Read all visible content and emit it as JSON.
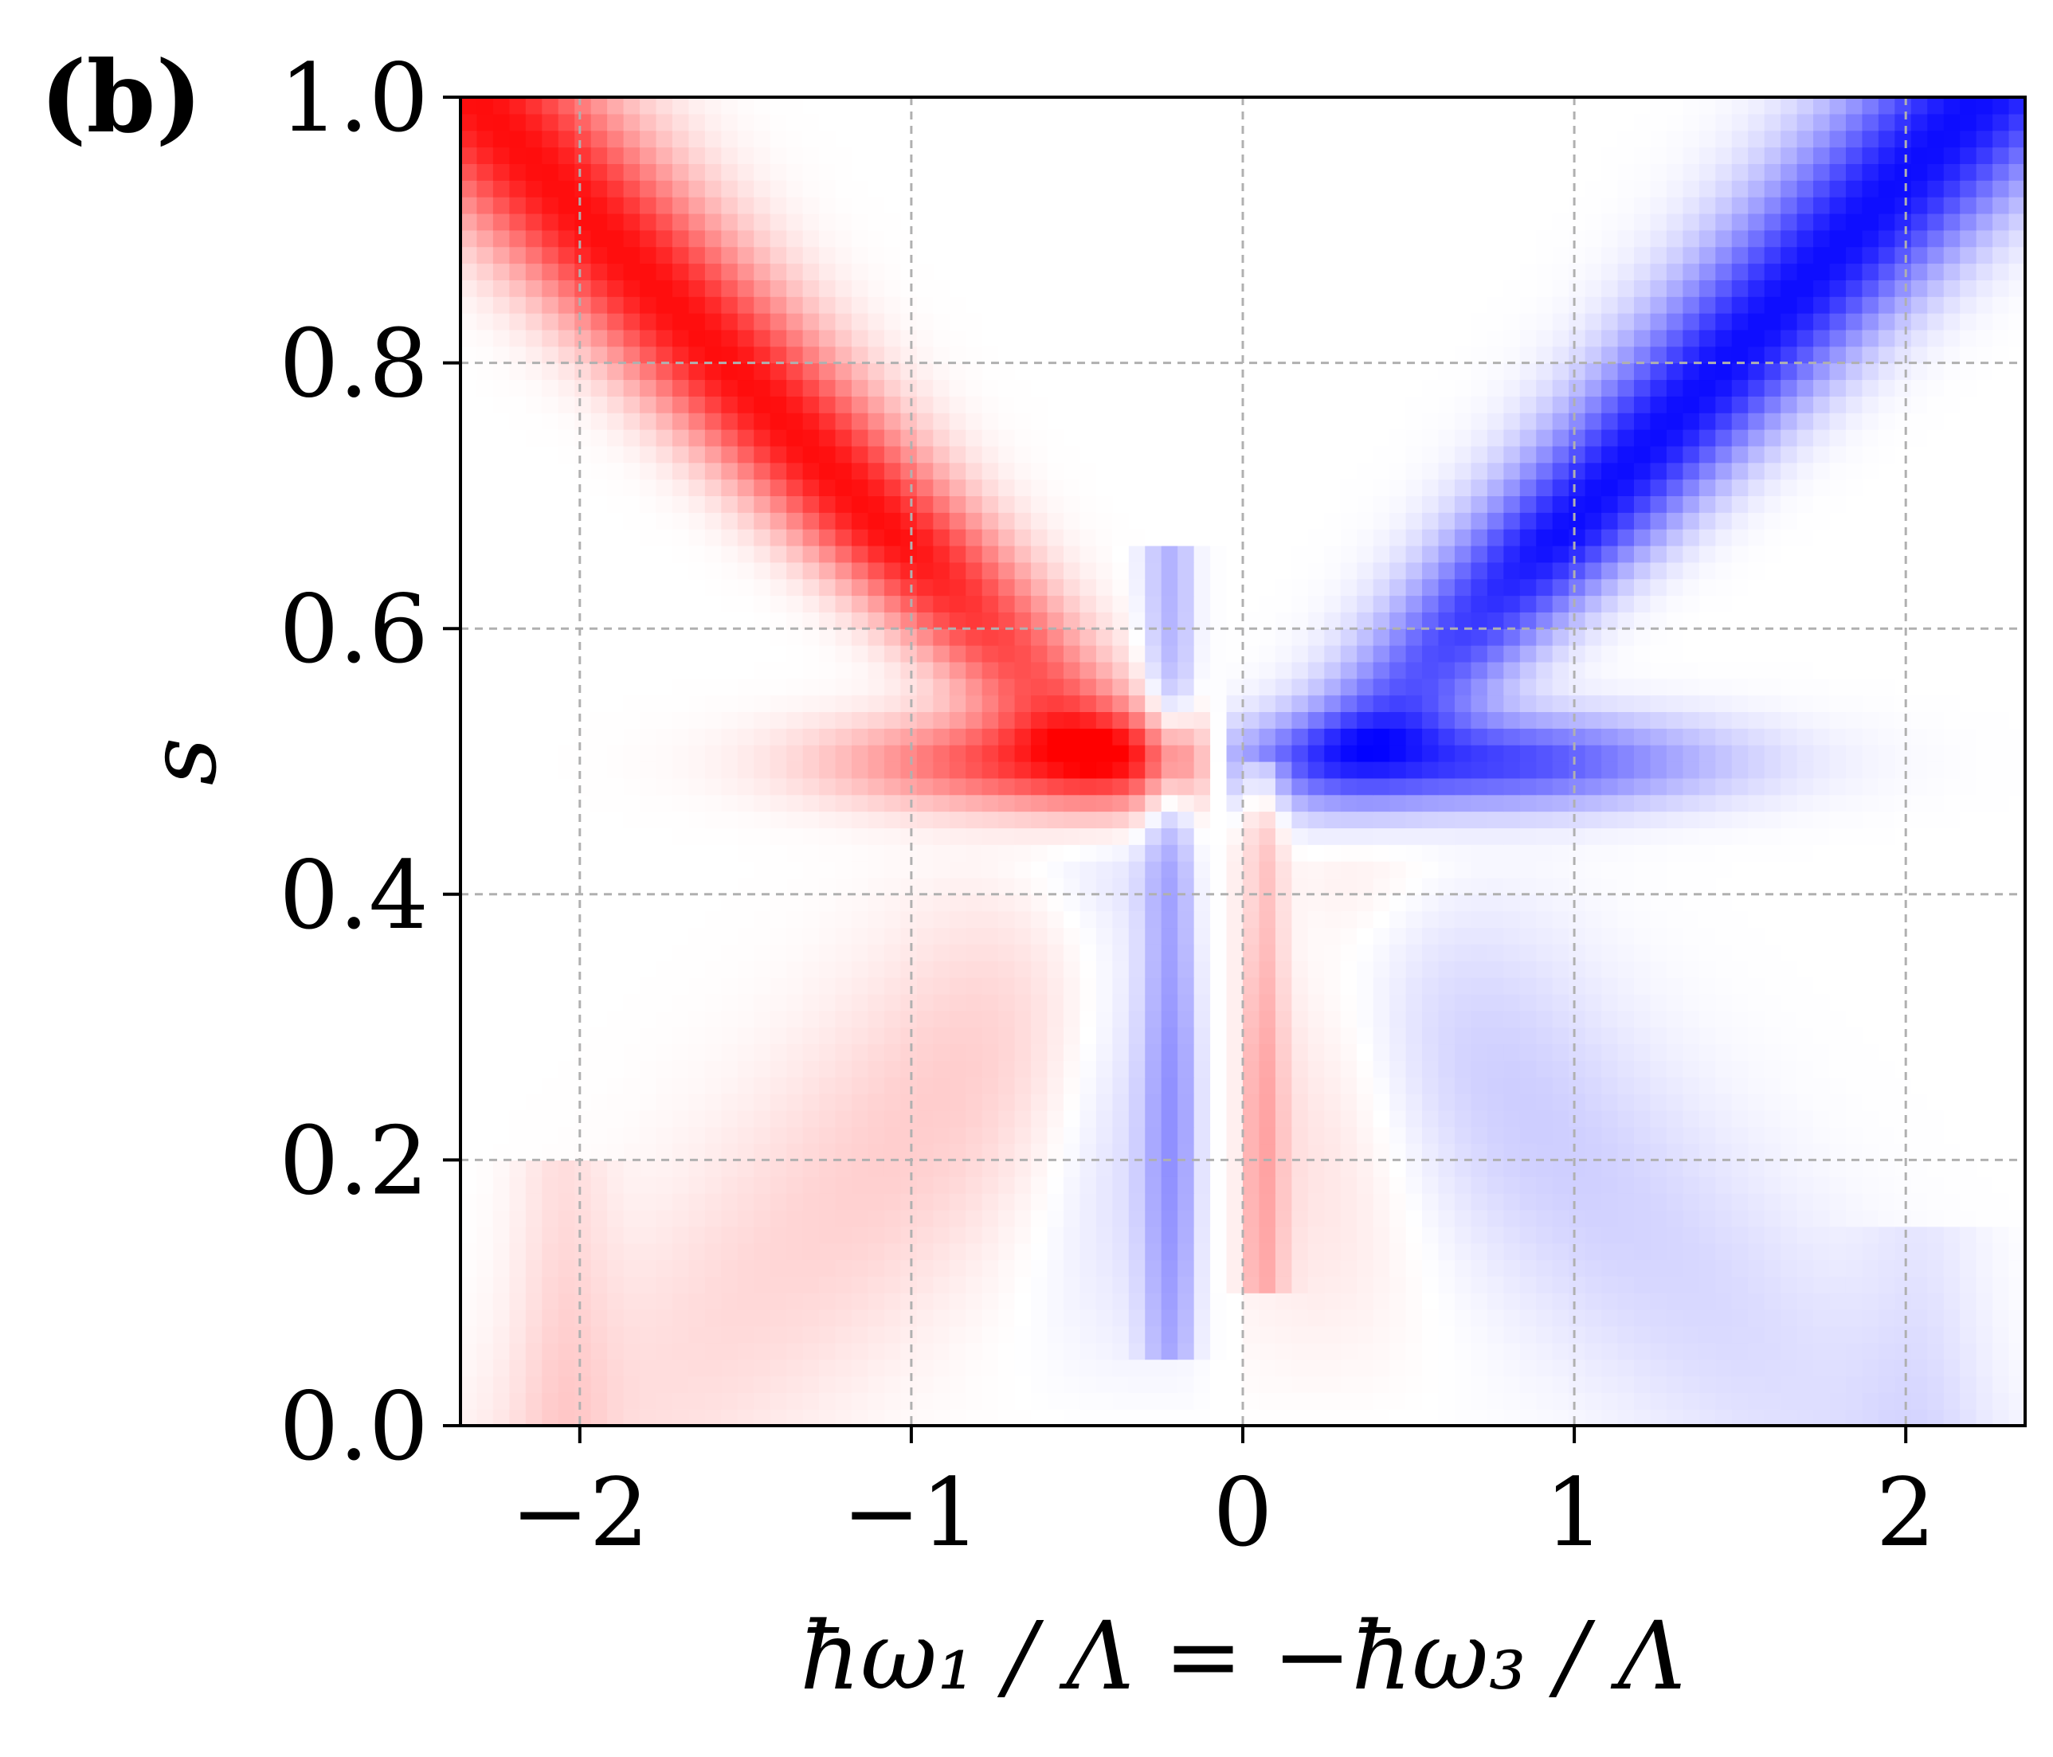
{
  "panel_label": "(b)",
  "chart_data": {
    "type": "heatmap",
    "title": "",
    "xlabel": "ħω₁ / Λ = −ħω₃ / Λ",
    "ylabel": "s",
    "xlim": [
      -2.36,
      2.36
    ],
    "ylim": [
      0.0,
      1.0
    ],
    "x_ticks": [
      -2,
      -1,
      0,
      1,
      2
    ],
    "x_tick_labels": [
      "−2",
      "−1",
      "0",
      "1",
      "2"
    ],
    "y_ticks": [
      0.0,
      0.2,
      0.4,
      0.6,
      0.8,
      1.0
    ],
    "y_tick_labels": [
      "0.0",
      "0.2",
      "0.4",
      "0.6",
      "0.8",
      "1.0"
    ],
    "grid": true,
    "colormap": {
      "negative": "#ff0000",
      "zero": "#ffffff",
      "positive": "#0000ff"
    },
    "grid_resolution": {
      "nx": 96,
      "ny": 80
    },
    "features": [
      {
        "name": "red branch",
        "sign": -1,
        "from": [
          -0.15,
          0.5
        ],
        "to": [
          -1.95,
          0.98
        ]
      },
      {
        "name": "blue branch",
        "sign": 1,
        "from": [
          0.05,
          0.5
        ],
        "to": [
          1.95,
          0.98
        ]
      },
      {
        "name": "red lower band",
        "sign": -1,
        "from": [
          -0.15,
          0.47
        ],
        "to": [
          -2.1,
          0.0
        ]
      },
      {
        "name": "blue lower band",
        "sign": 1,
        "from": [
          0.05,
          0.47
        ],
        "to": [
          2.1,
          0.0
        ]
      },
      {
        "name": "blue vertical strip",
        "sign": 1,
        "x": -0.22,
        "s_range": [
          0.05,
          0.65
        ]
      },
      {
        "name": "red vertical strip",
        "sign": -1,
        "x": 0.05,
        "s_range": [
          0.1,
          0.5
        ]
      }
    ]
  }
}
